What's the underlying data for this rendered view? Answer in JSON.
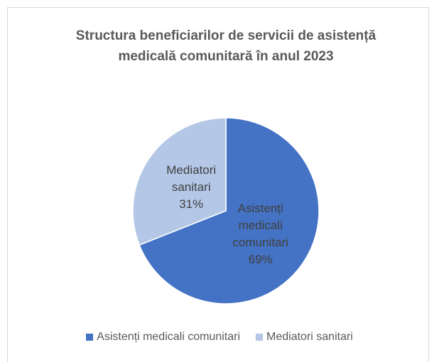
{
  "chart_data": {
    "type": "pie",
    "title": "Structura beneficiarilor de servicii de asistență medicală comunitară în anul 2023",
    "categories": [
      "Asistenți medicali comunitari",
      "Mediatori sanitari"
    ],
    "values": [
      69,
      31
    ],
    "value_labels": [
      "69%",
      "31%"
    ],
    "colors": [
      "#4472c4",
      "#b4c7e7"
    ],
    "legend": "bottom"
  }
}
